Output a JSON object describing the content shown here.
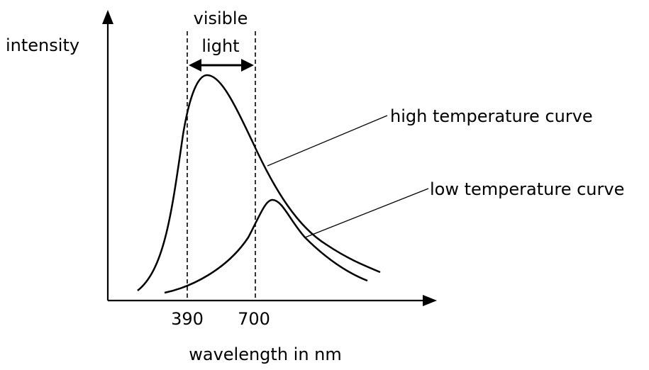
{
  "axes": {
    "y_label": "intensity",
    "x_label": "wavelength in nm",
    "x_ticks": [
      "390",
      "700"
    ]
  },
  "visible_band": {
    "label_line1": "visible",
    "label_line2": "light"
  },
  "curves": {
    "high_label": "high temperature curve",
    "low_label": "low temperature curve"
  }
}
